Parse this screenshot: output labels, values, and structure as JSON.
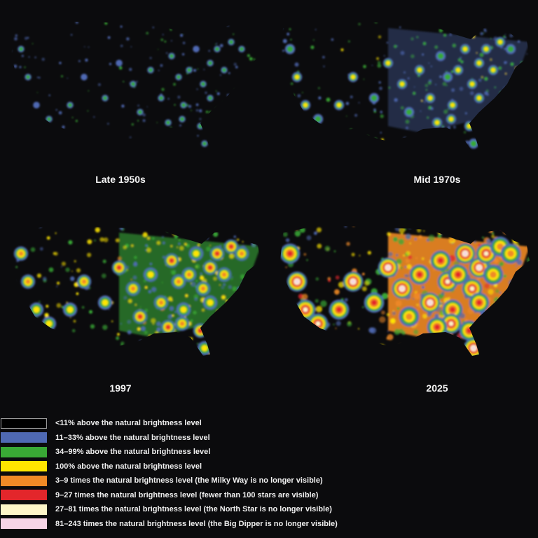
{
  "panels": [
    {
      "id": "late-1950s",
      "caption": "Late 1950s",
      "intensity": 0.15
    },
    {
      "id": "mid-1970s",
      "caption": "Mid 1970s",
      "intensity": 0.35
    },
    {
      "id": "1997",
      "caption": "1997",
      "intensity": 0.6
    },
    {
      "id": "2025",
      "caption": "2025",
      "intensity": 0.95
    }
  ],
  "legend": [
    {
      "color": "#000000",
      "border": "#9a9a9a",
      "label": "<11% above the natural brightness level"
    },
    {
      "color": "#4f69b3",
      "border": "#4f69b3",
      "label": "11–33% above the natural brightness level"
    },
    {
      "color": "#39a935",
      "border": "#39a935",
      "label": "34–99% above the natural brightness level"
    },
    {
      "color": "#ffe600",
      "border": "#ffe600",
      "label": "100% above the natural brightness level"
    },
    {
      "color": "#f08a26",
      "border": "#f08a26",
      "label": "3–9 times the natural brightness level (the Milky Way is no longer visible)"
    },
    {
      "color": "#e3262b",
      "border": "#e3262b",
      "label": "9–27 times the natural brightness level (fewer than 100 stars are visible)"
    },
    {
      "color": "#fdf6c8",
      "border": "#fdf6c8",
      "label": "27–81 times the natural brightness level (the North Star is no longer visible)"
    },
    {
      "color": "#f6d4e6",
      "border": "#f6d4e6",
      "label": "81–243 times the natural brightness level (the Big Dipper is no longer visible)"
    }
  ]
}
